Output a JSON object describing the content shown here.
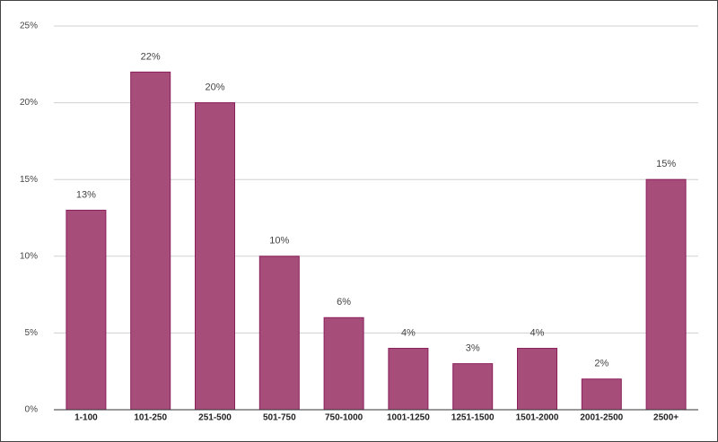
{
  "chart_data": {
    "type": "bar",
    "categories": [
      "1-100",
      "101-250",
      "251-500",
      "501-750",
      "750-1000",
      "1001-1250",
      "1251-1500",
      "1501-2000",
      "2001-2500",
      "2500+"
    ],
    "values": [
      13,
      22,
      20,
      10,
      6,
      4,
      3,
      4,
      2,
      15
    ],
    "value_labels": [
      "13%",
      "22%",
      "20%",
      "10%",
      "6%",
      "4%",
      "3%",
      "4%",
      "2%",
      "15%"
    ],
    "color": "#a64d79",
    "ylim": [
      0,
      25
    ],
    "yticks": [
      {
        "value": 0,
        "label": "0%"
      },
      {
        "value": 5,
        "label": "5%"
      },
      {
        "value": 10,
        "label": "10%"
      },
      {
        "value": 15,
        "label": "15%"
      },
      {
        "value": 20,
        "label": "20%"
      },
      {
        "value": 25,
        "label": "25%"
      }
    ],
    "grid": true
  }
}
